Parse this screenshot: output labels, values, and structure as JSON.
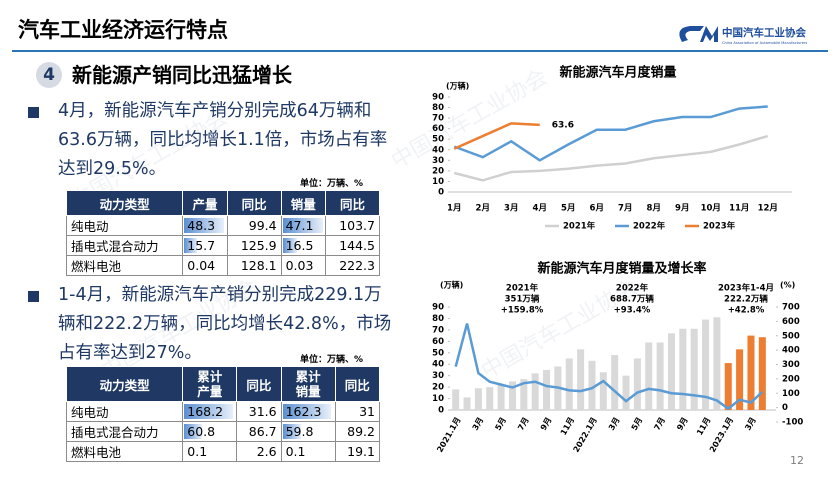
{
  "header": {
    "title": "汽车工业经济运行特点"
  },
  "logo": {
    "name": "中国汽车工业协会",
    "english": "China Association of Automobile Manufacturers"
  },
  "watermark": "中国汽车工业协会",
  "section": {
    "number": "4",
    "title": "新能源产销同比迅猛增长"
  },
  "bullets": [
    "4月，新能源汽车产销分别完成64万辆和63.6万辆，同比均增长1.1倍，市场占有率达到29.5%。",
    "1-4月，新能源汽车产销分别完成229.1万辆和222.2万辆，同比均增长42.8%，市场占有率达到27%。"
  ],
  "tables": [
    {
      "unit": "单位：万辆、%",
      "header": [
        "动力类型",
        "产量",
        "同比",
        "销量",
        "同比"
      ],
      "data_bar_columns": [
        1,
        3
      ],
      "rows": [
        [
          "纯电动",
          48.3,
          99.4,
          47.1,
          103.7
        ],
        [
          "插电式混合动力",
          15.7,
          125.9,
          16.5,
          144.5
        ],
        [
          "燃料电池",
          0.04,
          128.1,
          0.03,
          222.3
        ]
      ]
    },
    {
      "unit": "单位：万辆、%",
      "header": [
        "动力类型",
        "累计产量",
        "同比",
        "累计销量",
        "同比"
      ],
      "data_bar_columns": [
        1,
        3
      ],
      "rows": [
        [
          "纯电动",
          168.2,
          31.6,
          162.3,
          31
        ],
        [
          "插电式混合动力",
          60.8,
          86.7,
          59.8,
          89.2
        ],
        [
          "燃料电池",
          0.1,
          2.6,
          0.1,
          19.1
        ]
      ]
    }
  ],
  "page_number": "12",
  "chart_data": [
    {
      "type": "line",
      "title": "新能源汽车月度销量",
      "ylabel": "(万辆)",
      "categories": [
        "1月",
        "2月",
        "3月",
        "4月",
        "5月",
        "6月",
        "7月",
        "8月",
        "9月",
        "10月",
        "11月",
        "12月"
      ],
      "ylim": [
        0,
        90
      ],
      "yticks": [
        0,
        10,
        20,
        30,
        40,
        50,
        60,
        70,
        80,
        90
      ],
      "grid": false,
      "legend": "bottom",
      "series": [
        {
          "name": "2021年",
          "color": "#d0d0d0",
          "values": [
            18,
            11,
            19,
            20,
            22,
            25,
            27,
            32,
            35,
            38,
            45,
            53
          ]
        },
        {
          "name": "2022年",
          "color": "#5b9bd5",
          "values": [
            43,
            33,
            48,
            30,
            45,
            59,
            59,
            67,
            71,
            71,
            79,
            81
          ]
        },
        {
          "name": "2023年",
          "color": "#ed7d31",
          "data_labels": "last",
          "values": [
            41,
            53,
            65,
            63.6,
            null,
            null,
            null,
            null,
            null,
            null,
            null,
            null
          ]
        }
      ]
    },
    {
      "type": "bar",
      "title": "新能源汽车月度销量及增长率",
      "ylabel": "(万辆)",
      "y2label": "(%)",
      "categories": [
        "2021.1月",
        null,
        "3月",
        null,
        "5月",
        null,
        "7月",
        null,
        "9月",
        null,
        "11月",
        null,
        "2022.1月",
        null,
        "3月",
        null,
        "5月",
        null,
        "7月",
        null,
        "9月",
        null,
        "11月",
        null,
        "2023.1月",
        null,
        "3月",
        null
      ],
      "ylim": [
        0,
        90
      ],
      "yticks": [
        0,
        10,
        20,
        30,
        40,
        50,
        60,
        70,
        80,
        90
      ],
      "y2lim": [
        -100,
        700
      ],
      "y2ticks": [
        -100,
        0,
        100,
        200,
        300,
        400,
        500,
        600,
        700
      ],
      "grid": false,
      "series": [
        {
          "type": "bar",
          "color": "#d9d9d9",
          "values": [
            18,
            11,
            19,
            20,
            22,
            25,
            27,
            32,
            35,
            38,
            45,
            53,
            43,
            33,
            48,
            30,
            45,
            59,
            59,
            67,
            71,
            71,
            79,
            81,
            null,
            null,
            null,
            null
          ]
        },
        {
          "type": "bar",
          "color": "#ed7d31",
          "values": [
            null,
            null,
            null,
            null,
            null,
            null,
            null,
            null,
            null,
            null,
            null,
            null,
            null,
            null,
            null,
            null,
            null,
            null,
            null,
            null,
            null,
            null,
            null,
            null,
            41,
            53,
            65,
            63.6
          ]
        },
        {
          "type": "line",
          "axis": "y2",
          "color": "#5b9bd5",
          "values": [
            285,
            585,
            240,
            180,
            160,
            140,
            170,
            180,
            150,
            140,
            120,
            115,
            135,
            185,
            115,
            45,
            105,
            130,
            120,
            100,
            95,
            85,
            75,
            50,
            -7,
            55,
            35,
            110
          ]
        }
      ],
      "annotations": [
        {
          "lines": [
            "2021年",
            "351万辆",
            "+159.8%"
          ]
        },
        {
          "lines": [
            "2022年",
            "688.7万辆",
            "+93.4%"
          ]
        },
        {
          "lines": [
            "2023年1-4月",
            "222.2万辆",
            "+42.8%"
          ]
        }
      ]
    }
  ]
}
